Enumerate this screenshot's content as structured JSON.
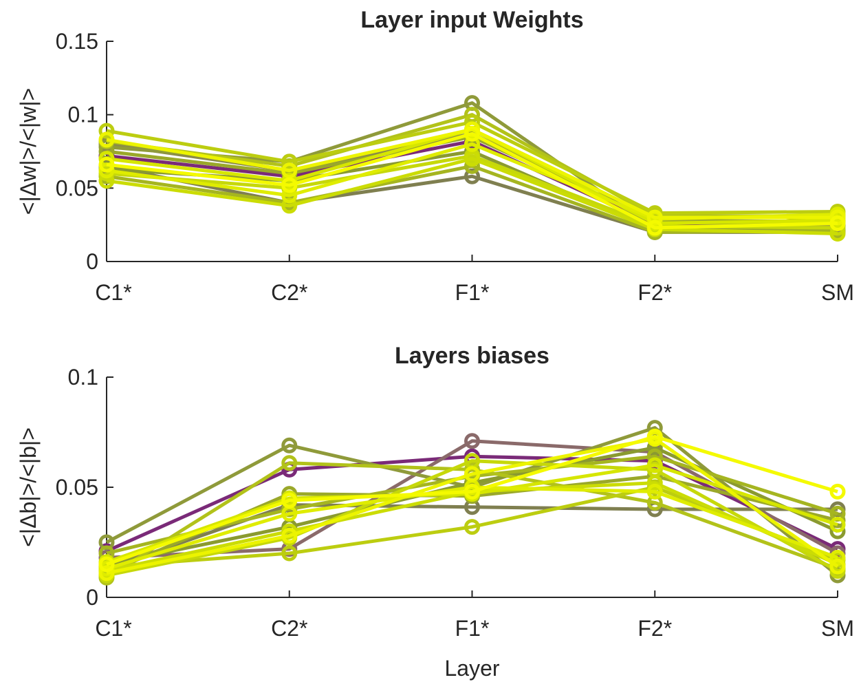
{
  "chart_data": [
    {
      "type": "line",
      "title": "Layer input Weights",
      "xlabel": "",
      "ylabel": "<|Δw|>/<|w|>",
      "categories": [
        "C1*",
        "C2*",
        "F1*",
        "F2*",
        "SM"
      ],
      "ylim": [
        0,
        0.15
      ],
      "yticks": [
        "0",
        "0.05",
        "0.1",
        "0.15"
      ],
      "grid": false,
      "legend": "none",
      "series": [
        {
          "values": [
            0.072,
            0.058,
            0.082,
            0.025,
            0.025
          ],
          "color": "#7a2a78"
        },
        {
          "values": [
            0.08,
            0.062,
            0.087,
            0.027,
            0.024
          ],
          "color": "#8a8a4a"
        },
        {
          "values": [
            0.065,
            0.04,
            0.058,
            0.02,
            0.02
          ],
          "color": "#7f7f50"
        },
        {
          "values": [
            0.078,
            0.068,
            0.108,
            0.022,
            0.022
          ],
          "color": "#8f9a3a"
        },
        {
          "values": [
            0.063,
            0.055,
            0.075,
            0.021,
            0.03
          ],
          "color": "#8a9a30"
        },
        {
          "values": [
            0.075,
            0.06,
            0.085,
            0.028,
            0.027
          ],
          "color": "#9aa82a"
        },
        {
          "values": [
            0.058,
            0.04,
            0.065,
            0.02,
            0.021
          ],
          "color": "#a5b520"
        },
        {
          "values": [
            0.082,
            0.065,
            0.1,
            0.031,
            0.031
          ],
          "color": "#b2c21a"
        },
        {
          "values": [
            0.089,
            0.068,
            0.095,
            0.033,
            0.034
          ],
          "color": "#bccd10"
        },
        {
          "values": [
            0.06,
            0.05,
            0.072,
            0.024,
            0.023
          ],
          "color": "#c6d80a"
        },
        {
          "values": [
            0.055,
            0.038,
            0.07,
            0.022,
            0.019
          ],
          "color": "#cbdc05"
        },
        {
          "values": [
            0.07,
            0.055,
            0.09,
            0.026,
            0.028
          ],
          "color": "#d6e600"
        },
        {
          "values": [
            0.062,
            0.045,
            0.08,
            0.029,
            0.032
          ],
          "color": "#dfec00"
        },
        {
          "values": [
            0.083,
            0.062,
            0.09,
            0.03,
            0.03
          ],
          "color": "#ecf400"
        },
        {
          "values": [
            0.066,
            0.052,
            0.087,
            0.023,
            0.026
          ],
          "color": "#f4fa00"
        }
      ]
    },
    {
      "type": "line",
      "title": "Layers biases",
      "xlabel": "Layer",
      "ylabel": "<|Δb|>/<|b|>",
      "categories": [
        "C1*",
        "C2*",
        "F1*",
        "F2*",
        "SM"
      ],
      "ylim": [
        0,
        0.1
      ],
      "yticks": [
        "0",
        "0.05",
        "0.1"
      ],
      "grid": false,
      "legend": "none",
      "series": [
        {
          "values": [
            0.021,
            0.058,
            0.064,
            0.062,
            0.022
          ],
          "color": "#7a2a78"
        },
        {
          "values": [
            0.018,
            0.022,
            0.071,
            0.066,
            0.02
          ],
          "color": "#8a6a6a"
        },
        {
          "values": [
            0.013,
            0.042,
            0.041,
            0.04,
            0.04
          ],
          "color": "#7f7f50"
        },
        {
          "values": [
            0.025,
            0.069,
            0.05,
            0.077,
            0.01
          ],
          "color": "#8f9a3a"
        },
        {
          "values": [
            0.015,
            0.032,
            0.052,
            0.068,
            0.03
          ],
          "color": "#8a9a30"
        },
        {
          "values": [
            0.011,
            0.047,
            0.046,
            0.055,
            0.035
          ],
          "color": "#9aa82a"
        },
        {
          "values": [
            0.02,
            0.04,
            0.055,
            0.064,
            0.038
          ],
          "color": "#a5b520"
        },
        {
          "values": [
            0.009,
            0.061,
            0.058,
            0.043,
            0.013
          ],
          "color": "#b2c21a"
        },
        {
          "values": [
            0.014,
            0.02,
            0.032,
            0.05,
            0.017
          ],
          "color": "#bccd10"
        },
        {
          "values": [
            0.01,
            0.027,
            0.062,
            0.058,
            0.012
          ],
          "color": "#c6d80a"
        },
        {
          "values": [
            0.012,
            0.03,
            0.048,
            0.052,
            0.015
          ],
          "color": "#cbdc05"
        },
        {
          "values": [
            0.016,
            0.045,
            0.047,
            0.06,
            0.033
          ],
          "color": "#d6e600"
        },
        {
          "values": [
            0.013,
            0.038,
            0.05,
            0.048,
            0.018
          ],
          "color": "#dfec00"
        },
        {
          "values": [
            0.011,
            0.028,
            0.056,
            0.072,
            0.014
          ],
          "color": "#ecf400"
        },
        {
          "values": [
            0.015,
            0.044,
            0.048,
            0.073,
            0.048
          ],
          "color": "#f4fa00"
        }
      ]
    }
  ]
}
